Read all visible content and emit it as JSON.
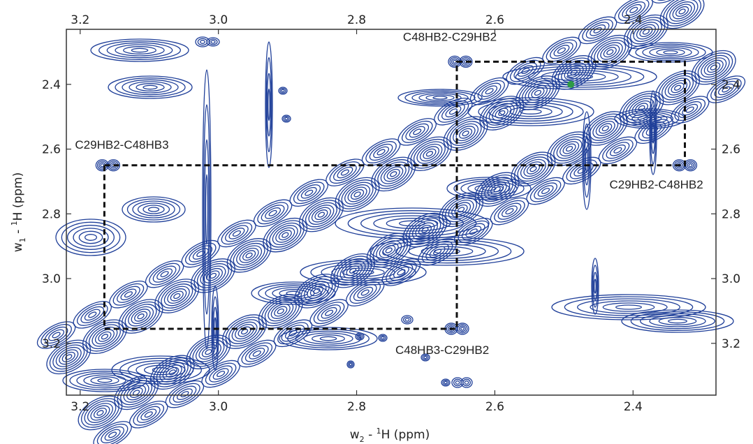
{
  "chart_data": {
    "type": "contour",
    "xlabel": {
      "base": "w",
      "sub": "2",
      "dash": " - ",
      "sup": "1",
      "rest": "H (ppm)"
    },
    "ylabel": {
      "base": "w",
      "sub": "1",
      "dash": " - ",
      "sup": "1",
      "rest": "H (ppm)"
    },
    "xlim": [
      3.22,
      2.28
    ],
    "ylim": [
      2.23,
      3.36
    ],
    "x_ticks": [
      3.2,
      3.0,
      2.8,
      2.6,
      2.4
    ],
    "x_tick_labels": [
      "3.2",
      "3.0",
      "2.8",
      "2.6",
      "2.4"
    ],
    "y_ticks": [
      2.4,
      2.6,
      2.8,
      3.0,
      3.2
    ],
    "y_tick_labels": [
      "2.4",
      "2.6",
      "2.8",
      "3.0",
      "3.2"
    ],
    "contour_color": "#1f3f99",
    "marker_color": "#2e9a46",
    "diagonal": {
      "from": [
        3.22,
        3.36
      ],
      "to": [
        2.28,
        2.23
      ]
    },
    "assignment_boxes": [
      {
        "x_from": 3.165,
        "x_to": 2.655,
        "y_from": 2.65,
        "y_to": 3.155
      },
      {
        "x_from": 2.655,
        "x_to": 2.325,
        "y_from": 2.33,
        "y_to": 2.65
      }
    ],
    "peak_labels": [
      {
        "text": "C48HB2-C29HB2",
        "x": 2.65,
        "y": 2.33
      },
      {
        "text": "C29HB2-C48HB3",
        "x": 3.165,
        "y": 2.65
      },
      {
        "text": "C29HB2-C48HB2",
        "x": 2.325,
        "y": 2.65
      },
      {
        "text": "C48HB3-C29HB2",
        "x": 2.655,
        "y": 3.155
      }
    ],
    "cross_peaks": [
      {
        "x": 2.65,
        "y": 2.33
      },
      {
        "x": 3.16,
        "y": 2.65
      },
      {
        "x": 2.325,
        "y": 2.65
      },
      {
        "x": 2.655,
        "y": 3.155
      }
    ],
    "marker": {
      "x": 2.49,
      "y": 2.4
    }
  }
}
